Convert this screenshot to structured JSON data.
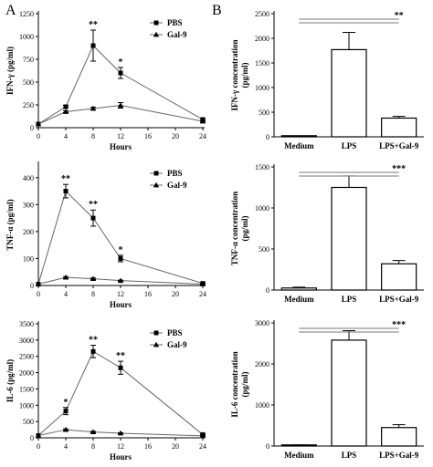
{
  "figure": {
    "panel_a_letter": "A",
    "panel_b_letter": "B"
  },
  "chart_data": [
    {
      "type": "line",
      "panel": "A",
      "x": [
        0,
        4,
        8,
        12,
        24
      ],
      "xlabel": "Hours",
      "ylabel": "IFN-γ (pg/ml)",
      "xlim": [
        0,
        24
      ],
      "ylim": [
        0,
        1250
      ],
      "xticks": [
        0,
        4,
        8,
        12,
        16,
        20,
        24
      ],
      "yticks": [
        0,
        250,
        500,
        750,
        1000,
        1250
      ],
      "legend_position": "top-right",
      "series": [
        {
          "name": "PBS",
          "marker": "square",
          "values": [
            40,
            230,
            900,
            600,
            90
          ],
          "errors": [
            0,
            15,
            170,
            60,
            10
          ]
        },
        {
          "name": "Gal-9",
          "marker": "triangle",
          "values": [
            40,
            175,
            210,
            245,
            70
          ],
          "errors": [
            0,
            10,
            15,
            30,
            8
          ]
        }
      ],
      "annotations": [
        {
          "x": 8,
          "text": "**"
        },
        {
          "x": 12,
          "text": "*"
        }
      ]
    },
    {
      "type": "bar",
      "panel": "B",
      "categories": [
        "Medium",
        "LPS",
        "LPS+Gal-9"
      ],
      "values": [
        10,
        1770,
        380
      ],
      "errors": [
        5,
        350,
        35
      ],
      "ylabel": "IFN-γ concentration (pg/ml)",
      "ylim": [
        0,
        2500
      ],
      "yticks": [
        0,
        500,
        1000,
        1500,
        2000,
        2500
      ],
      "significance": [
        {
          "text": "**"
        }
      ]
    },
    {
      "type": "line",
      "panel": "A",
      "x": [
        0,
        4,
        8,
        12,
        24
      ],
      "xlabel": "Hours",
      "ylabel": "TNF-α (pg/ml)",
      "xlim": [
        0,
        24
      ],
      "ylim": [
        0,
        450
      ],
      "xticks": [
        0,
        4,
        8,
        12,
        16,
        20,
        24
      ],
      "yticks": [
        0,
        100,
        200,
        300,
        400
      ],
      "legend_position": "top-right",
      "series": [
        {
          "name": "PBS",
          "marker": "square",
          "values": [
            5,
            350,
            250,
            100,
            8
          ],
          "errors": [
            0,
            25,
            30,
            12,
            2
          ]
        },
        {
          "name": "Gal-9",
          "marker": "triangle",
          "values": [
            5,
            30,
            25,
            18,
            5
          ],
          "errors": [
            0,
            3,
            3,
            2,
            1
          ]
        }
      ],
      "annotations": [
        {
          "x": 4,
          "text": "**"
        },
        {
          "x": 8,
          "text": "**"
        },
        {
          "x": 12,
          "text": "*"
        }
      ]
    },
    {
      "type": "bar",
      "panel": "B",
      "categories": [
        "Medium",
        "LPS",
        "LPS+Gal-9"
      ],
      "values": [
        25,
        1250,
        320
      ],
      "errors": [
        10,
        140,
        40
      ],
      "ylabel": "TNF-α concentration (pg/ml)",
      "ylim": [
        0,
        1500
      ],
      "yticks": [
        0,
        500,
        1000,
        1500
      ],
      "significance": [
        {
          "text": "***"
        }
      ]
    },
    {
      "type": "line",
      "panel": "A",
      "x": [
        0,
        4,
        8,
        12,
        24
      ],
      "xlabel": "Hours",
      "ylabel": "IL-6 (pg/ml)",
      "xlim": [
        0,
        24
      ],
      "ylim": [
        0,
        3500
      ],
      "xticks": [
        0,
        4,
        8,
        12,
        16,
        20,
        24
      ],
      "yticks": [
        0,
        500,
        1000,
        1500,
        2000,
        2500,
        3000,
        3500
      ],
      "legend_position": "top-right",
      "series": [
        {
          "name": "PBS",
          "marker": "square",
          "values": [
            70,
            820,
            2650,
            2150,
            100
          ],
          "errors": [
            0,
            110,
            190,
            200,
            15
          ]
        },
        {
          "name": "Gal-9",
          "marker": "triangle",
          "values": [
            70,
            250,
            180,
            140,
            60
          ],
          "errors": [
            0,
            25,
            20,
            15,
            8
          ]
        }
      ],
      "annotations": [
        {
          "x": 4,
          "text": "*"
        },
        {
          "x": 8,
          "text": "**"
        },
        {
          "x": 12,
          "text": "**"
        }
      ]
    },
    {
      "type": "bar",
      "panel": "B",
      "categories": [
        "Medium",
        "LPS",
        "LPS+Gal-9"
      ],
      "values": [
        20,
        2580,
        450
      ],
      "errors": [
        8,
        230,
        70
      ],
      "ylabel": "IL-6 concentration (pg/ml)",
      "ylabel_lines": [
        "IL-6 concentration",
        "(pg/ml)"
      ],
      "ylim": [
        0,
        3000
      ],
      "yticks": [
        0,
        1000,
        2000,
        3000
      ],
      "significance": [
        {
          "text": "***"
        }
      ]
    }
  ]
}
